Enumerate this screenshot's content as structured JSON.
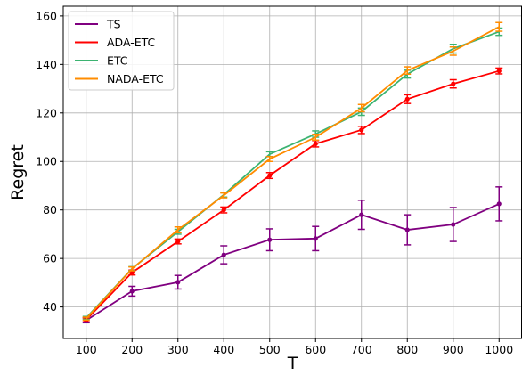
{
  "chart_data": {
    "type": "line",
    "xlabel": "T",
    "ylabel": "Regret",
    "x": [
      100,
      200,
      300,
      400,
      500,
      600,
      700,
      800,
      900,
      1000
    ],
    "xlim": [
      50,
      1050
    ],
    "ylim": [
      27,
      164
    ],
    "xticks": [
      100,
      200,
      300,
      400,
      500,
      600,
      700,
      800,
      900,
      1000
    ],
    "yticks": [
      40,
      60,
      80,
      100,
      120,
      140,
      160
    ],
    "grid": true,
    "legend_position": "top-left",
    "error_bars": true,
    "series": [
      {
        "name": "TS",
        "color": "#800080",
        "marker": true,
        "values": [
          34.5,
          46.5,
          50.2,
          61.5,
          67.7,
          68.2,
          78.0,
          71.8,
          74.0,
          82.5
        ],
        "errors": [
          1.0,
          2.0,
          2.8,
          3.7,
          4.5,
          5.0,
          6.0,
          6.2,
          7.0,
          7.0
        ]
      },
      {
        "name": "ADA-ETC",
        "color": "#ff0000",
        "marker": true,
        "values": [
          34.7,
          54.2,
          67.0,
          80.0,
          94.2,
          107.3,
          113.0,
          125.7,
          132.0,
          137.3
        ],
        "errors": [
          0.8,
          1.0,
          1.0,
          1.2,
          1.2,
          1.3,
          1.5,
          1.8,
          1.7,
          1.2
        ]
      },
      {
        "name": "ETC",
        "color": "#3cb371",
        "marker": false,
        "values": [
          35.5,
          55.8,
          71.0,
          86.3,
          103.0,
          111.3,
          120.5,
          136.0,
          146.5,
          153.5
        ],
        "errors": [
          0.6,
          0.8,
          1.0,
          1.0,
          1.0,
          1.3,
          1.5,
          1.6,
          1.8,
          1.5
        ]
      },
      {
        "name": "NADA-ETC",
        "color": "#ff8c00",
        "marker": false,
        "values": [
          35.2,
          55.7,
          71.8,
          86.0,
          101.0,
          110.0,
          122.0,
          137.5,
          145.5,
          155.5
        ],
        "errors": [
          0.6,
          0.8,
          1.2,
          1.0,
          1.0,
          1.2,
          1.5,
          1.5,
          1.7,
          1.8
        ]
      }
    ]
  }
}
